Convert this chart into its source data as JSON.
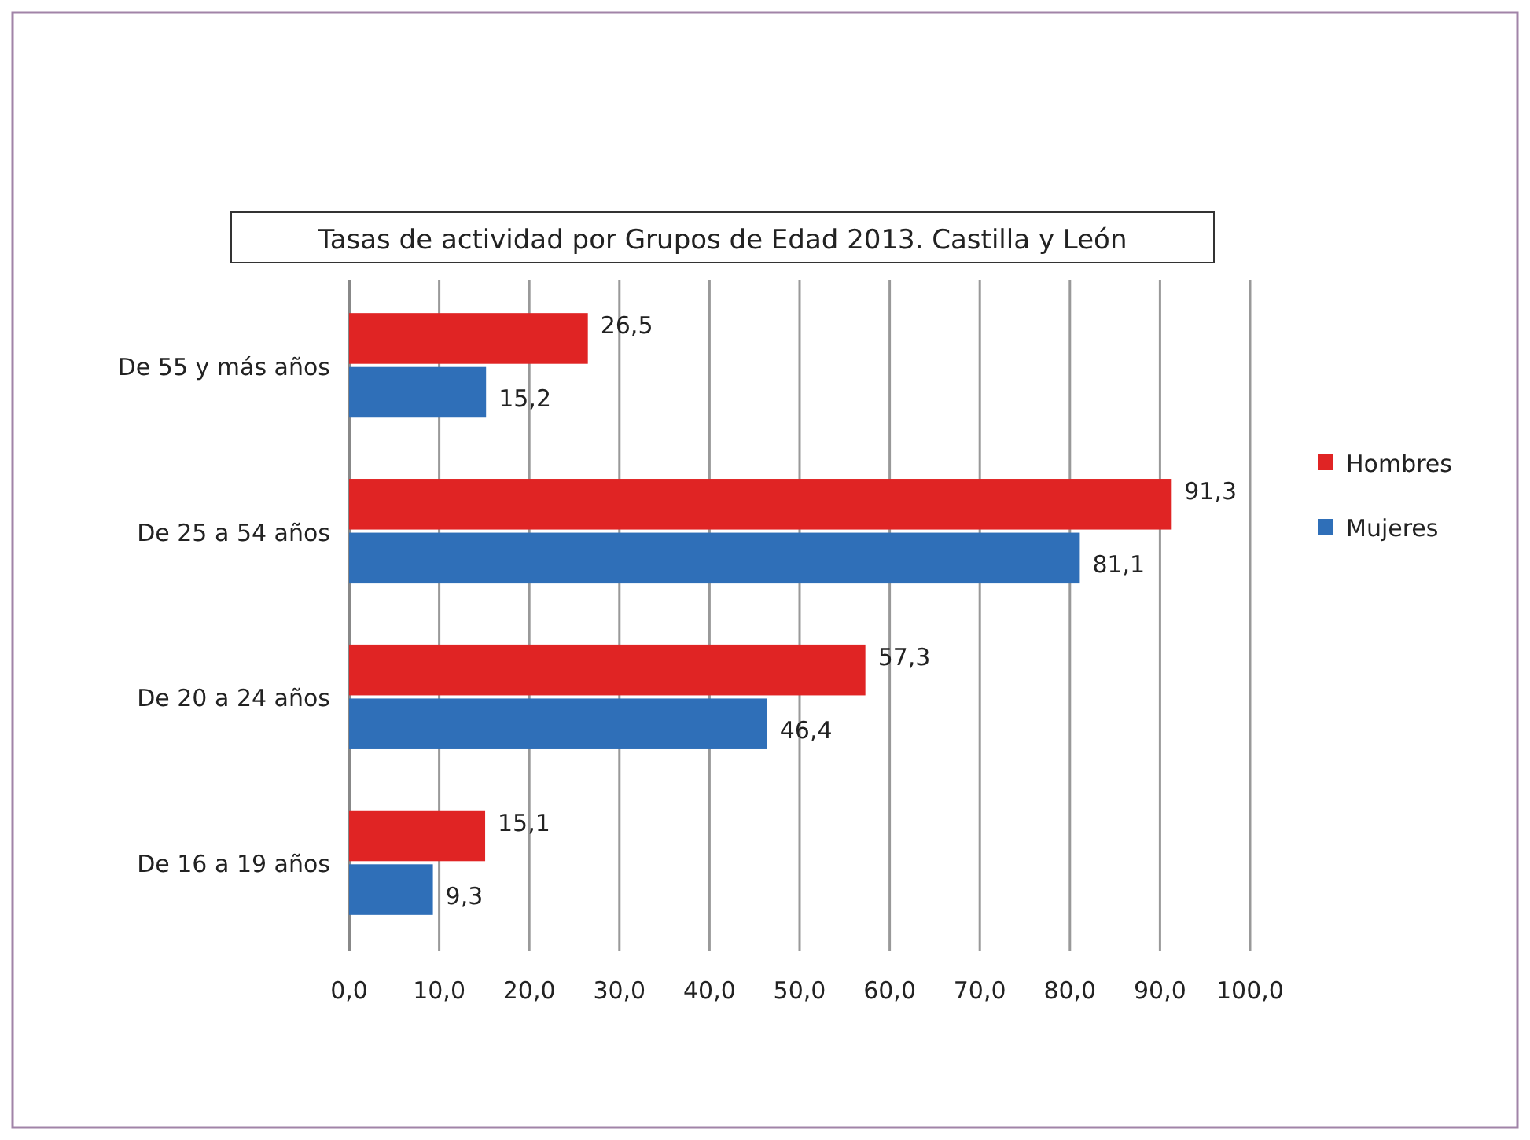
{
  "chart_data": {
    "type": "bar",
    "orientation": "horizontal",
    "title": "Tasas de actividad por Grupos de Edad 2013. Castilla y León",
    "categories": [
      "De 55 y más años",
      "De 25 a 54 años",
      "De 20 a 24 años",
      "De 16 a 19 años"
    ],
    "series": [
      {
        "name": "Hombres",
        "color": "#e02424",
        "values": [
          26.5,
          91.3,
          57.3,
          15.1
        ],
        "value_labels": [
          "26,5",
          "91,3",
          "57,3",
          "15,1"
        ]
      },
      {
        "name": "Mujeres",
        "color": "#2f6fb8",
        "values": [
          15.2,
          81.1,
          46.4,
          9.3
        ],
        "value_labels": [
          "15,2",
          "81,1",
          "46,4",
          "9,3"
        ]
      }
    ],
    "xlim": [
      0,
      100
    ],
    "xticks": [
      {
        "value": 0,
        "label": "0,0"
      },
      {
        "value": 10,
        "label": "10,0"
      },
      {
        "value": 20,
        "label": "20,0"
      },
      {
        "value": 30,
        "label": "30,0"
      },
      {
        "value": 40,
        "label": "40,0"
      },
      {
        "value": 50,
        "label": "50,0"
      },
      {
        "value": 60,
        "label": "60,0"
      },
      {
        "value": 70,
        "label": "70,0"
      },
      {
        "value": 80,
        "label": "80,0"
      },
      {
        "value": 90,
        "label": "90,0"
      },
      {
        "value": 100,
        "label": "100,0"
      }
    ],
    "grid": "x",
    "legend": "right"
  }
}
